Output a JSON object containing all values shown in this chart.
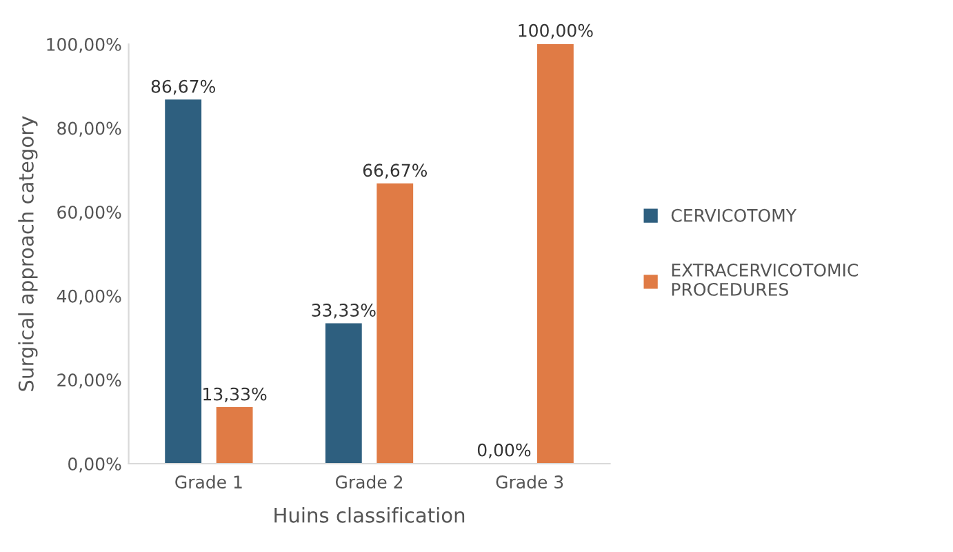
{
  "chart_data": {
    "type": "bar",
    "xlabel": "Huins classification",
    "ylabel": "Surgical approach category",
    "categories": [
      "Grade 1",
      "Grade 2",
      "Grade 3"
    ],
    "series": [
      {
        "name": "CERVICOTOMY",
        "color": "#2e5f7f",
        "values": [
          86.67,
          33.33,
          0
        ],
        "value_labels": [
          "86,67%",
          "33,33%",
          "0,00%"
        ]
      },
      {
        "name": "EXTRACERVICOTOMIC\nPROCEDURES",
        "color": "#e07b45",
        "values": [
          13.33,
          66.67,
          100
        ],
        "value_labels": [
          "13,33%",
          "66,67%",
          "100,00%"
        ]
      }
    ],
    "ylim": [
      0,
      100
    ],
    "yticks": [
      {
        "value": 0,
        "label": "0,00%"
      },
      {
        "value": 20,
        "label": "20,00%"
      },
      {
        "value": 40,
        "label": "40,00%"
      },
      {
        "value": 60,
        "label": "60,00%"
      },
      {
        "value": 80,
        "label": "80,00%"
      },
      {
        "value": 100,
        "label": "100,00%"
      }
    ],
    "grid": false,
    "legend": "right"
  }
}
